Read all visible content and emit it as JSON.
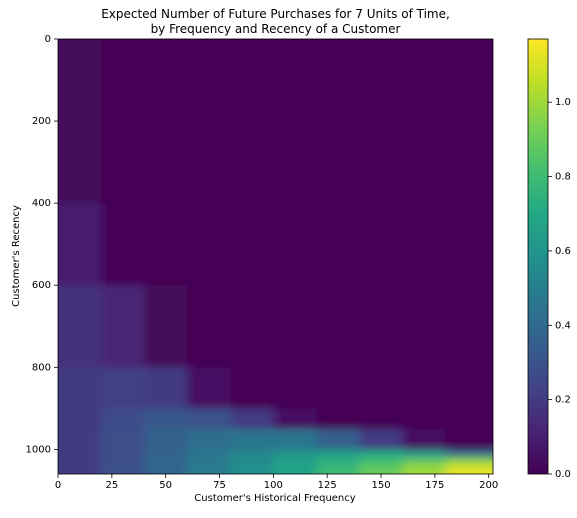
{
  "chart_data": {
    "type": "heatmap",
    "title": "Expected Number of Future Purchases for 7 Units of Time,\nby Frequency and Recency of a Customer",
    "xlabel": "Customer's Historical Frequency",
    "ylabel": "Customer's Recency",
    "xbins": [
      0,
      20,
      40,
      60,
      80,
      100,
      120,
      140,
      160,
      180,
      200
    ],
    "ybins": [
      0,
      400,
      600,
      800,
      900,
      950,
      1000,
      1020,
      1040,
      1060
    ],
    "z": [
      [
        0.02,
        0,
        0,
        0,
        0,
        0,
        0,
        0,
        0,
        0
      ],
      [
        0.1,
        0.01,
        0,
        0,
        0,
        0,
        0,
        0,
        0,
        0
      ],
      [
        0.17,
        0.12,
        0.02,
        0,
        0,
        0,
        0,
        0,
        0,
        0
      ],
      [
        0.2,
        0.22,
        0.2,
        0.05,
        0,
        0,
        0,
        0,
        0,
        0
      ],
      [
        0.2,
        0.27,
        0.32,
        0.3,
        0.2,
        0.05,
        0,
        0,
        0,
        0
      ],
      [
        0.2,
        0.28,
        0.36,
        0.42,
        0.46,
        0.45,
        0.35,
        0.2,
        0.05,
        0
      ],
      [
        0.2,
        0.28,
        0.37,
        0.46,
        0.53,
        0.6,
        0.65,
        0.68,
        0.6,
        0.4
      ],
      [
        0.2,
        0.28,
        0.38,
        0.47,
        0.56,
        0.65,
        0.74,
        0.82,
        0.9,
        0.98
      ],
      [
        0.2,
        0.29,
        0.38,
        0.48,
        0.58,
        0.68,
        0.79,
        0.9,
        1.0,
        1.12
      ]
    ],
    "xlim": [
      0,
      202
    ],
    "ylim": [
      1060,
      0
    ],
    "xticks": [
      0,
      25,
      50,
      75,
      100,
      125,
      150,
      175,
      200
    ],
    "yticks": [
      0,
      200,
      400,
      600,
      800,
      1000
    ],
    "zlim": [
      0,
      1.17
    ],
    "zticks": [
      {
        "value": 0,
        "label": "0.0"
      },
      {
        "value": 0.2,
        "label": "0.2"
      },
      {
        "value": 0.4,
        "label": "0.4"
      },
      {
        "value": 0.6,
        "label": "0.6"
      },
      {
        "value": 0.8,
        "label": "0.8"
      },
      {
        "value": 1.0,
        "label": "1.0"
      }
    ],
    "colormap": "viridis"
  }
}
